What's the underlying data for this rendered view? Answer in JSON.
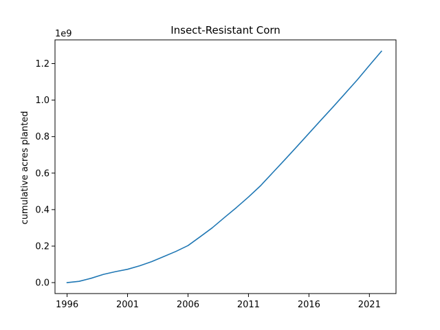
{
  "chart_data": {
    "type": "line",
    "title": "Insect-Resistant Corn",
    "xlabel": "",
    "ylabel": "cumulative acres planted",
    "y_multiplier_label": "1e9",
    "xlim": [
      1995.0,
      2023.2
    ],
    "ylim": [
      -0.06,
      1.33
    ],
    "x_ticks": [
      1996,
      2001,
      2006,
      2011,
      2016,
      2021
    ],
    "y_ticks": [
      0.0,
      0.2,
      0.4,
      0.6,
      0.8,
      1.0,
      1.2
    ],
    "y_tick_labels": [
      "0.0",
      "0.2",
      "0.4",
      "0.6",
      "0.8",
      "1.0",
      "1.2"
    ],
    "grid": false,
    "series": [
      {
        "color": "#1f77b4",
        "x": [
          1996,
          1997,
          1998,
          1999,
          2000,
          2001,
          2002,
          2003,
          2004,
          2005,
          2006,
          2007,
          2008,
          2009,
          2010,
          2011,
          2012,
          2013,
          2014,
          2015,
          2016,
          2017,
          2018,
          2019,
          2020,
          2021,
          2022
        ],
        "y": [
          0.0,
          0.007,
          0.024,
          0.045,
          0.06,
          0.073,
          0.092,
          0.115,
          0.143,
          0.171,
          0.203,
          0.251,
          0.3,
          0.356,
          0.411,
          0.469,
          0.531,
          0.602,
          0.673,
          0.745,
          0.818,
          0.891,
          0.963,
          1.037,
          1.111,
          1.19,
          1.268
        ]
      }
    ]
  }
}
